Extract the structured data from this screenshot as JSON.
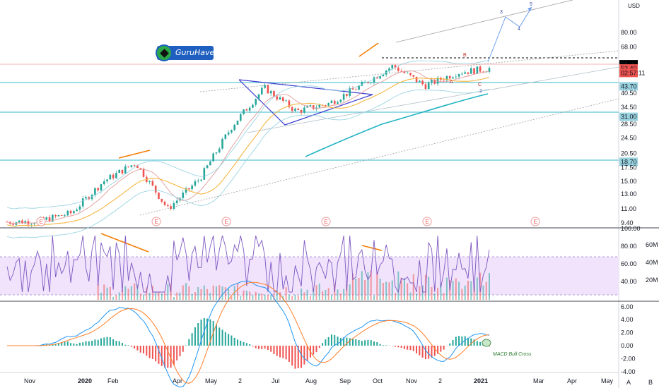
{
  "logo_text": "GuruHaven",
  "currency": "USD",
  "corner_buttons": [
    "A",
    "B"
  ],
  "price_axis_labels": [
    "80.00",
    "68.00",
    "56.00",
    "53.40",
    "02:57:11",
    "43.70",
    "40.50",
    "34.50",
    "31.00",
    "28.50",
    "24.50",
    "20.50",
    "18.70",
    "17.50",
    "15.00",
    "13.00",
    "11.00",
    "9.40"
  ],
  "price_tag_colors": {
    "56.00": "#000000",
    "53.40": "#ef5350",
    "02:57:11": "#ef5350",
    "43.70": "#9ad3e0",
    "31.00": "#9ad3e0",
    "18.70": "#9ad3e0"
  },
  "rsi_axis_labels": [
    "100.00",
    "80.00",
    "60.00",
    "40.00"
  ],
  "volume_axis_labels": [
    "60M",
    "40M",
    "20M"
  ],
  "macd_axis_labels": [
    "6.00",
    "4.00",
    "2.00",
    "0.00",
    "-2.00",
    "-4.00"
  ],
  "time_axis_labels": [
    "Nov",
    "2020",
    "Feb",
    "Apr",
    "May",
    "2",
    "Jul",
    "Aug",
    "Sep",
    "Oct",
    "Nov",
    "2",
    "2021",
    "Mar",
    "Apr",
    "May"
  ],
  "earnings_marker": "E",
  "wave_labels": {
    "b": "B",
    "a": "A",
    "c": "C",
    "w2": "2",
    "w3": "3",
    "w4": "4",
    "w5": "5"
  },
  "macd_annotation": "MACD Bull Cross",
  "colors": {
    "up": "#26a69a",
    "down": "#ef5350",
    "ma_fast": "#e39a9a",
    "ma_slow": "#f5b642",
    "bb": "#8fd0e0",
    "teal_ma": "#22b3c3",
    "triangle": "#3c3ccf",
    "divergence": "#f57c00",
    "rsi": "#7e57c2",
    "rsi_band": "#e9d5fb",
    "hline": "#5fc7d6",
    "macd": "#2196f3",
    "signal": "#ff7f2a",
    "projection": "#6d9eeb"
  },
  "chart_data": {
    "type": "candlestick",
    "x_range": [
      "2019-10",
      "2021-05"
    ],
    "y_scale": "log",
    "ylim": [
      9.4,
      110
    ],
    "horizontal_levels": [
      56.0,
      43.7,
      31.0,
      18.7
    ],
    "last_price": 53.4,
    "countdown": "02:57:11",
    "monthly_closes": [
      {
        "month": "2019-10",
        "close": 9.5
      },
      {
        "month": "2019-11",
        "close": 9.6
      },
      {
        "month": "2019-12",
        "close": 10.5
      },
      {
        "month": "2020-01",
        "close": 15.0
      },
      {
        "month": "2020-02",
        "close": 18.5
      },
      {
        "month": "2020-03",
        "close": 11.0
      },
      {
        "month": "2020-04",
        "close": 15.5
      },
      {
        "month": "2020-05",
        "close": 28.0
      },
      {
        "month": "2020-06",
        "close": 43.0
      },
      {
        "month": "2020-07",
        "close": 33.0
      },
      {
        "month": "2020-08",
        "close": 36.0
      },
      {
        "month": "2020-09",
        "close": 44.0
      },
      {
        "month": "2020-10",
        "close": 55.0
      },
      {
        "month": "2020-11",
        "close": 44.0
      },
      {
        "month": "2020-12",
        "close": 51.0
      },
      {
        "month": "2021-01",
        "close": 53.4
      }
    ],
    "rsi": {
      "ylim": [
        20,
        100
      ],
      "overbought": 70,
      "oversold": 30
    },
    "macd": {
      "ylim": [
        -4,
        6
      ],
      "annotation": "MACD Bull Cross"
    }
  }
}
